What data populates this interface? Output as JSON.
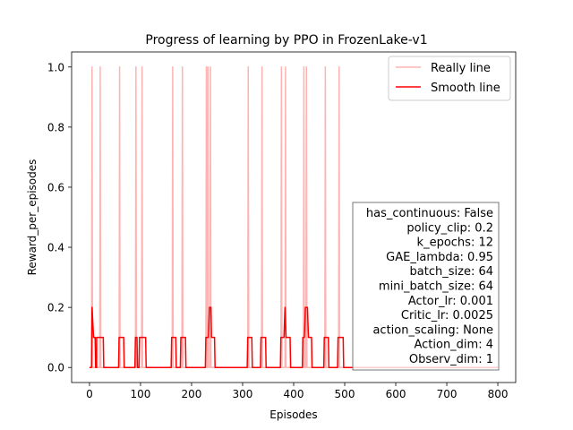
{
  "chart_data": {
    "type": "line",
    "title": "Progress of learning by PPO in FrozenLake-v1",
    "xlabel": "Episodes",
    "ylabel": "Reward_per_episodes",
    "xlim": [
      -35,
      835
    ],
    "ylim": [
      -0.05,
      1.05
    ],
    "xticks": [
      0,
      100,
      200,
      300,
      400,
      500,
      600,
      700,
      800
    ],
    "yticks": [
      0.0,
      0.2,
      0.4,
      0.6,
      0.8,
      1.0
    ],
    "grid": false,
    "legend_position": "top-right",
    "series": [
      {
        "name": "Really line",
        "color": "#ffb3b3",
        "spikes_at": [
          5,
          21,
          59,
          91,
          103,
          163,
          182,
          229,
          232,
          237,
          311,
          338,
          376,
          384,
          420,
          425,
          462,
          489
        ],
        "spike_value": 1.0,
        "base_value": 0.0,
        "x_end": 800
      },
      {
        "name": "Smooth line",
        "color": "#ff0000",
        "points": [
          [
            0,
            0.0
          ],
          [
            4,
            0.0
          ],
          [
            5,
            0.2
          ],
          [
            8,
            0.1
          ],
          [
            11,
            0.1
          ],
          [
            12,
            0.0
          ],
          [
            14,
            0.0
          ],
          [
            14,
            0.1
          ],
          [
            27,
            0.1
          ],
          [
            28,
            0.0
          ],
          [
            57,
            0.0
          ],
          [
            58,
            0.1
          ],
          [
            67,
            0.1
          ],
          [
            68,
            0.0
          ],
          [
            89,
            0.0
          ],
          [
            90,
            0.1
          ],
          [
            93,
            0.1
          ],
          [
            94,
            0.0
          ],
          [
            97,
            0.0
          ],
          [
            98,
            0.1
          ],
          [
            110,
            0.1
          ],
          [
            111,
            0.0
          ],
          [
            160,
            0.0
          ],
          [
            161,
            0.1
          ],
          [
            169,
            0.1
          ],
          [
            170,
            0.0
          ],
          [
            178,
            0.0
          ],
          [
            179,
            0.1
          ],
          [
            188,
            0.1
          ],
          [
            189,
            0.0
          ],
          [
            227,
            0.0
          ],
          [
            228,
            0.1
          ],
          [
            233,
            0.1
          ],
          [
            235,
            0.2
          ],
          [
            238,
            0.2
          ],
          [
            239,
            0.1
          ],
          [
            245,
            0.1
          ],
          [
            246,
            0.0
          ],
          [
            309,
            0.0
          ],
          [
            310,
            0.1
          ],
          [
            318,
            0.1
          ],
          [
            319,
            0.0
          ],
          [
            335,
            0.0
          ],
          [
            336,
            0.1
          ],
          [
            345,
            0.1
          ],
          [
            346,
            0.0
          ],
          [
            374,
            0.0
          ],
          [
            375,
            0.1
          ],
          [
            381,
            0.1
          ],
          [
            383,
            0.2
          ],
          [
            385,
            0.1
          ],
          [
            393,
            0.1
          ],
          [
            394,
            0.0
          ],
          [
            417,
            0.0
          ],
          [
            418,
            0.1
          ],
          [
            421,
            0.1
          ],
          [
            423,
            0.2
          ],
          [
            427,
            0.2
          ],
          [
            429,
            0.1
          ],
          [
            435,
            0.1
          ],
          [
            436,
            0.0
          ],
          [
            459,
            0.0
          ],
          [
            460,
            0.1
          ],
          [
            468,
            0.1
          ],
          [
            469,
            0.0
          ],
          [
            486,
            0.0
          ],
          [
            487,
            0.1
          ],
          [
            497,
            0.1
          ],
          [
            498,
            0.0
          ],
          [
            800,
            0.0
          ]
        ]
      }
    ],
    "annotation_lines": [
      "has_continuous: False",
      "policy_clip: 0.2",
      "k_epochs: 12",
      "GAE_lambda: 0.95",
      "batch_size: 64",
      "mini_batch_size: 64",
      "Actor_lr: 0.001",
      "Critic_lr: 0.0025",
      "action_scaling: None",
      "Action_dim: 4",
      "Observ_dim: 1"
    ]
  }
}
